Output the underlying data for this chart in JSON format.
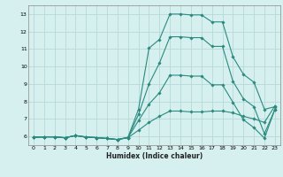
{
  "title": "",
  "xlabel": "Humidex (Indice chaleur)",
  "ylabel": "",
  "bg_color": "#d6f0f0",
  "grid_color": "#b8d8d8",
  "line_color": "#2a8a7e",
  "xlim": [
    -0.5,
    23.5
  ],
  "ylim": [
    5.5,
    13.5
  ],
  "xticks": [
    0,
    1,
    2,
    3,
    4,
    5,
    6,
    7,
    8,
    9,
    10,
    11,
    12,
    13,
    14,
    15,
    16,
    17,
    18,
    19,
    20,
    21,
    22,
    23
  ],
  "yticks": [
    6,
    7,
    8,
    9,
    10,
    11,
    12,
    13
  ],
  "lines": [
    {
      "x": [
        0,
        1,
        2,
        3,
        4,
        5,
        6,
        7,
        8,
        9,
        10,
        11,
        12,
        13,
        14,
        15,
        16,
        17,
        18,
        19,
        20,
        21,
        22,
        23
      ],
      "y": [
        5.95,
        5.98,
        5.98,
        5.93,
        6.05,
        5.97,
        5.93,
        5.88,
        5.82,
        5.95,
        7.55,
        11.05,
        11.55,
        13.0,
        13.0,
        12.95,
        12.95,
        12.55,
        12.55,
        10.55,
        9.55,
        9.1,
        7.55,
        7.7
      ]
    },
    {
      "x": [
        0,
        1,
        2,
        3,
        4,
        5,
        6,
        7,
        8,
        9,
        10,
        11,
        12,
        13,
        14,
        15,
        16,
        17,
        18,
        19,
        20,
        21,
        22,
        23
      ],
      "y": [
        5.95,
        5.97,
        5.97,
        5.92,
        6.05,
        5.97,
        5.93,
        5.88,
        5.82,
        5.93,
        7.25,
        9.0,
        10.2,
        11.7,
        11.7,
        11.65,
        11.65,
        11.15,
        11.15,
        9.15,
        8.15,
        7.7,
        6.15,
        7.55
      ]
    },
    {
      "x": [
        0,
        1,
        2,
        3,
        4,
        5,
        6,
        7,
        8,
        9,
        10,
        11,
        12,
        13,
        14,
        15,
        16,
        17,
        18,
        19,
        20,
        21,
        22,
        23
      ],
      "y": [
        5.95,
        5.97,
        5.97,
        5.92,
        6.05,
        5.95,
        5.93,
        5.88,
        5.82,
        5.93,
        6.9,
        7.85,
        8.5,
        9.5,
        9.5,
        9.45,
        9.45,
        8.95,
        8.95,
        7.95,
        6.95,
        6.5,
        5.9,
        7.55
      ]
    },
    {
      "x": [
        0,
        1,
        2,
        3,
        4,
        5,
        6,
        7,
        8,
        9,
        10,
        11,
        12,
        13,
        14,
        15,
        16,
        17,
        18,
        19,
        20,
        21,
        22,
        23
      ],
      "y": [
        5.95,
        5.97,
        5.97,
        5.92,
        6.05,
        5.95,
        5.93,
        5.88,
        5.82,
        5.93,
        6.35,
        6.8,
        7.15,
        7.45,
        7.45,
        7.4,
        7.4,
        7.45,
        7.45,
        7.35,
        7.15,
        7.0,
        6.8,
        7.75
      ]
    }
  ]
}
